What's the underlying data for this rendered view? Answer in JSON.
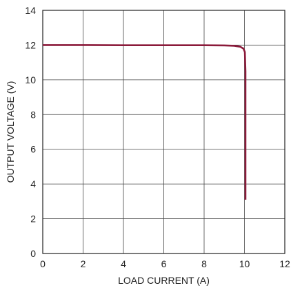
{
  "chart_data": {
    "type": "line",
    "title": "",
    "xlabel": "LOAD CURRENT (A)",
    "ylabel": "OUTPUT VOLTAGE (V)",
    "xlim": [
      0,
      12
    ],
    "ylim": [
      0,
      14
    ],
    "x_ticks": [
      0,
      2,
      4,
      6,
      8,
      10,
      12
    ],
    "y_ticks": [
      0,
      2,
      4,
      6,
      8,
      10,
      12,
      14
    ],
    "grid": true,
    "legend": "none",
    "series": [
      {
        "color": "#8b1a3a",
        "x": [
          0,
          2,
          4,
          6,
          8,
          9,
          9.5,
          9.8,
          9.95,
          10.02,
          10.05,
          10.05
        ],
        "y": [
          12.0,
          12.0,
          11.99,
          11.99,
          11.99,
          11.98,
          11.96,
          11.9,
          11.8,
          11.6,
          10.5,
          3.1
        ]
      }
    ]
  }
}
